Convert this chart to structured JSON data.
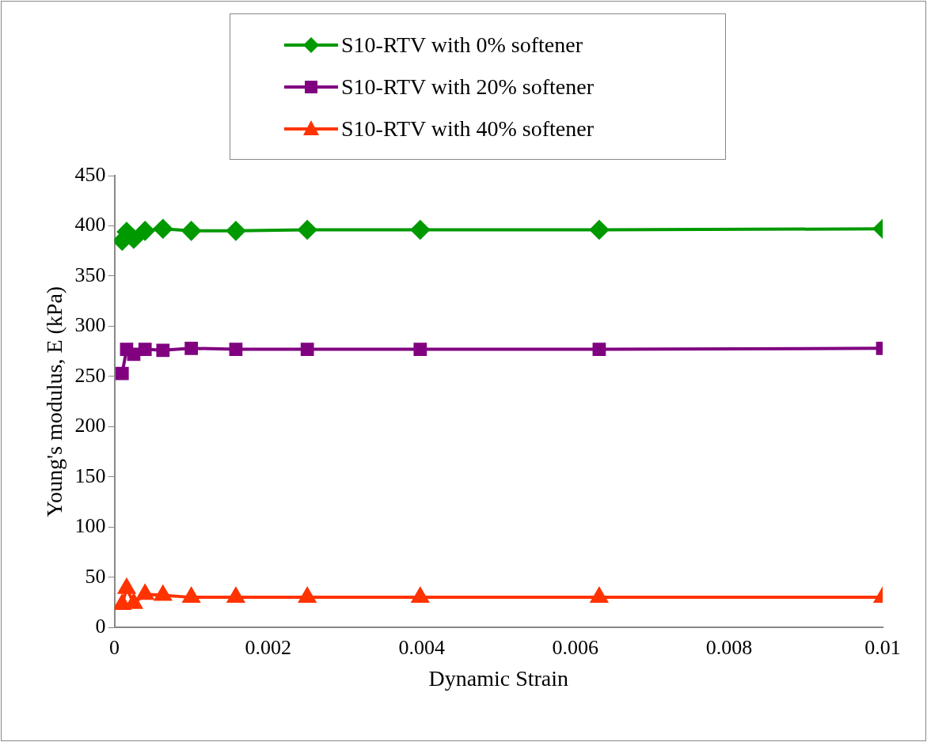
{
  "chart_data": {
    "type": "line",
    "xlabel": "Dynamic Strain",
    "ylabel": "Young's modulus, E (kPa)",
    "x": [
      0.0001,
      0.000158,
      0.000251,
      0.000398,
      0.000631,
      0.001,
      0.00158,
      0.00251,
      0.00398,
      0.00631,
      0.01
    ],
    "xlim": [
      0,
      0.01
    ],
    "xticks": [
      0,
      0.002,
      0.004,
      0.006,
      0.008,
      0.01
    ],
    "ylim": [
      0,
      450
    ],
    "yticks": [
      0,
      50,
      100,
      150,
      200,
      250,
      300,
      350,
      400,
      450
    ],
    "grid": false,
    "legend": "top",
    "series": [
      {
        "name": "S10-RTV with 0% softener",
        "color": "#009900",
        "marker": "diamond",
        "values": [
          385,
          394,
          387,
          395,
          397,
          395,
          395,
          396,
          396,
          396,
          397
        ]
      },
      {
        "name": "S10-RTV with 20% softener",
        "color": "#800080",
        "marker": "square",
        "values": [
          253,
          277,
          272,
          277,
          276,
          278,
          277,
          277,
          277,
          277,
          278
        ]
      },
      {
        "name": "S10-RTV with 40% softener",
        "color": "#ff3300",
        "marker": "triangle",
        "values": [
          23,
          39,
          24,
          33,
          32,
          30,
          30,
          30,
          30,
          30,
          30
        ]
      }
    ]
  }
}
